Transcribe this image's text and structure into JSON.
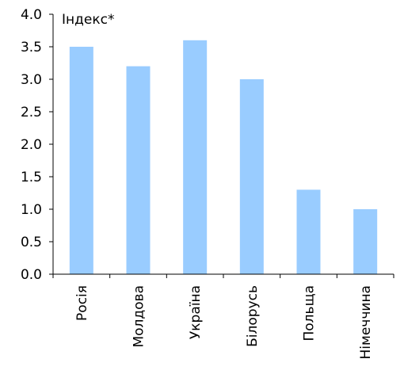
{
  "chart_data": {
    "type": "bar",
    "ylabel": "Індекс*",
    "xlabel": "",
    "categories": [
      "Росія",
      "Молдова",
      "Україна",
      "Білорусь",
      "Польща",
      "Німеччина"
    ],
    "values": [
      3.5,
      3.2,
      3.6,
      3.0,
      1.3,
      1.0
    ],
    "ylim": [
      0,
      4
    ],
    "yticks": [
      "0.0",
      "0.5",
      "1.0",
      "1.5",
      "2.0",
      "2.5",
      "3.0",
      "3.5",
      "4.0"
    ],
    "bar_color": "#99CCFF",
    "axis_color": "#000000",
    "grid": false,
    "legend": "none"
  }
}
